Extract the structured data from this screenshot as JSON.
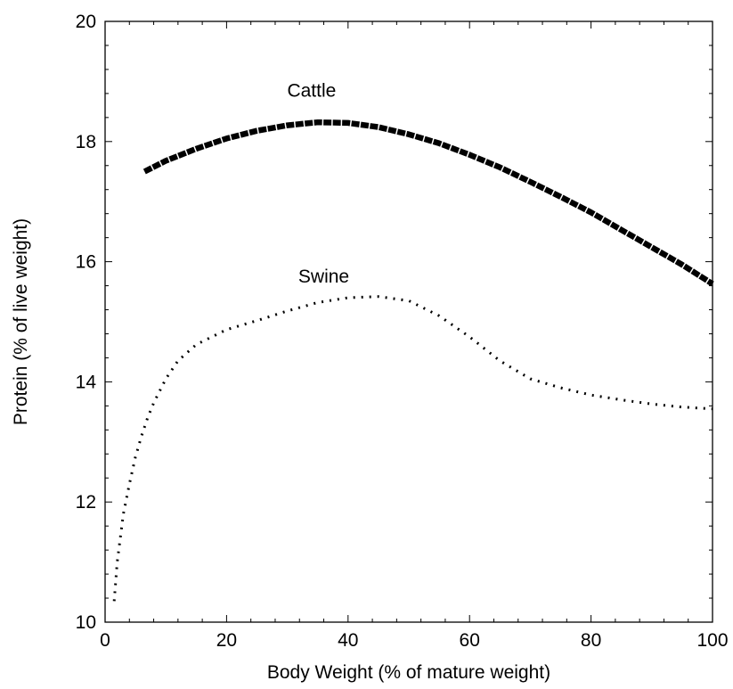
{
  "chart_data": {
    "type": "line",
    "title": "",
    "xlabel": "Body Weight (% of mature weight)",
    "ylabel": "Protein (% of live weight)",
    "xlim": [
      0,
      100
    ],
    "ylim": [
      10,
      20
    ],
    "x_ticks": [
      0,
      20,
      40,
      60,
      80,
      100
    ],
    "y_ticks": [
      10,
      12,
      14,
      16,
      18,
      20
    ],
    "grid": false,
    "series": [
      {
        "name": "Cattle",
        "style": "thick-solid",
        "color": "#000000",
        "x": [
          6.5,
          10,
          15,
          20,
          25,
          30,
          35,
          40,
          45,
          50,
          55,
          60,
          65,
          70,
          75,
          80,
          85,
          90,
          95,
          100
        ],
        "y": [
          17.5,
          17.68,
          17.88,
          18.05,
          18.18,
          18.27,
          18.32,
          18.31,
          18.24,
          18.12,
          17.97,
          17.78,
          17.57,
          17.33,
          17.08,
          16.82,
          16.53,
          16.24,
          15.95,
          15.63
        ]
      },
      {
        "name": "Swine",
        "style": "dotted",
        "color": "#000000",
        "x": [
          1.5,
          2,
          3,
          4,
          5,
          6,
          7,
          8,
          10,
          12,
          15,
          20,
          25,
          30,
          35,
          40,
          45,
          50,
          55,
          60,
          65,
          70,
          75,
          80,
          85,
          90,
          95,
          100
        ],
        "y": [
          10.35,
          11.0,
          11.8,
          12.3,
          12.75,
          13.1,
          13.4,
          13.65,
          14.05,
          14.35,
          14.62,
          14.87,
          15.02,
          15.18,
          15.32,
          15.4,
          15.42,
          15.35,
          15.1,
          14.75,
          14.35,
          14.05,
          13.9,
          13.78,
          13.7,
          13.63,
          13.58,
          13.55
        ]
      }
    ],
    "annotations": [
      {
        "text": "Cattle",
        "x": 34,
        "y": 18.75
      },
      {
        "text": "Swine",
        "x": 36,
        "y": 15.65
      }
    ]
  }
}
